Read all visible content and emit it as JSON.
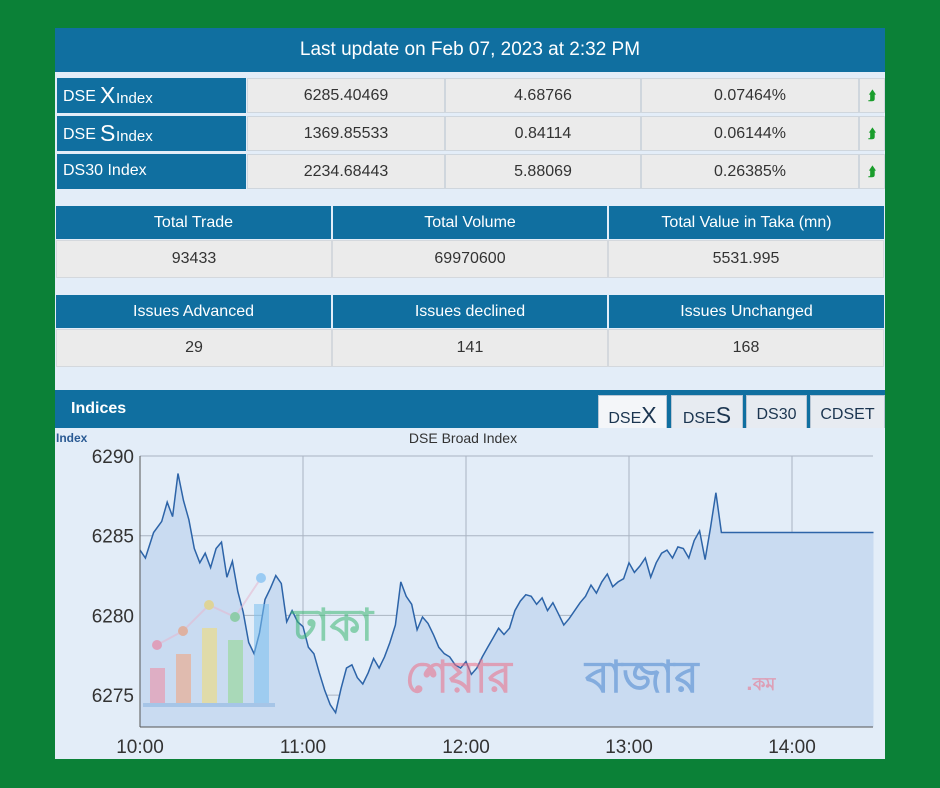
{
  "header": {
    "last_update": "Last update on Feb 07, 2023 at 2:32 PM"
  },
  "indices": [
    {
      "prefix": "DSE",
      "big": "X",
      "suffix": " Index",
      "value": "6285.40469",
      "change": "4.68766",
      "percent": "0.07464%",
      "trend": "up"
    },
    {
      "prefix": "DSE",
      "big": "S",
      "suffix": " Index",
      "value": "1369.85533",
      "change": "0.84114",
      "percent": "0.06144%",
      "trend": "up"
    },
    {
      "prefix": "DS30 Index",
      "big": "",
      "suffix": "",
      "value": "2234.68443",
      "change": "5.88069",
      "percent": "0.26385%",
      "trend": "up"
    }
  ],
  "trade": {
    "headers": [
      "Total Trade",
      "Total Volume",
      "Total Value in Taka (mn)"
    ],
    "values": [
      "93433",
      "69970600",
      "5531.995"
    ]
  },
  "issues": {
    "headers": [
      "Issues Advanced",
      "Issues declined",
      "Issues Unchanged"
    ],
    "values": [
      "29",
      "141",
      "168"
    ]
  },
  "indices_panel": {
    "title": "Indices",
    "tabs": [
      {
        "prefix": "DSE",
        "big": "X",
        "active": true
      },
      {
        "prefix": "DSE",
        "big": "S",
        "active": false
      },
      {
        "prefix": "DS30",
        "big": "",
        "active": false
      },
      {
        "prefix": "CDSET",
        "big": "",
        "active": false
      }
    ]
  },
  "watermark": {
    "word1": "ঢাকা",
    "word2": "শেয়ার",
    "word3": "বাজার",
    "suffix": ".কম"
  },
  "colors": {
    "header_blue": "#106fa0",
    "background_green": "#0b8137",
    "line": "#2d64a8",
    "area": "#c9dbf1",
    "arrow_green": "#1a9d2c"
  },
  "chart_data": {
    "type": "area",
    "title": "DSE Broad Index",
    "ylabel": "Index",
    "xlabel": "",
    "ylim": [
      6273,
      6290
    ],
    "yticks": [
      6275,
      6280,
      6285,
      6290
    ],
    "xticks": [
      "10:00",
      "11:00",
      "12:00",
      "13:00",
      "14:00"
    ],
    "grid": true,
    "x": [
      "10:00",
      "10:02",
      "10:05",
      "10:08",
      "10:10",
      "10:12",
      "10:14",
      "10:16",
      "10:18",
      "10:20",
      "10:22",
      "10:24",
      "10:26",
      "10:28",
      "10:30",
      "10:32",
      "10:34",
      "10:36",
      "10:38",
      "10:40",
      "10:42",
      "10:44",
      "10:46",
      "10:48",
      "10:50",
      "10:52",
      "10:54",
      "10:56",
      "10:58",
      "11:00",
      "11:02",
      "11:04",
      "11:06",
      "11:08",
      "11:10",
      "11:12",
      "11:14",
      "11:16",
      "11:18",
      "11:20",
      "11:22",
      "11:24",
      "11:26",
      "11:28",
      "11:30",
      "11:32",
      "11:34",
      "11:36",
      "11:38",
      "11:40",
      "11:42",
      "11:44",
      "11:46",
      "11:48",
      "11:50",
      "11:52",
      "11:54",
      "11:56",
      "11:58",
      "12:00",
      "12:02",
      "12:04",
      "12:06",
      "12:08",
      "12:10",
      "12:12",
      "12:14",
      "12:16",
      "12:18",
      "12:20",
      "12:22",
      "12:24",
      "12:26",
      "12:28",
      "12:30",
      "12:32",
      "12:34",
      "12:36",
      "12:38",
      "12:40",
      "12:42",
      "12:44",
      "12:46",
      "12:48",
      "12:50",
      "12:52",
      "12:54",
      "12:56",
      "12:58",
      "13:00",
      "13:02",
      "13:04",
      "13:06",
      "13:08",
      "13:10",
      "13:12",
      "13:14",
      "13:16",
      "13:18",
      "13:20",
      "13:22",
      "13:24",
      "13:26",
      "13:28",
      "13:30",
      "13:32",
      "13:34",
      "13:36",
      "13:38",
      "13:40",
      "13:42",
      "13:44",
      "13:46",
      "13:48",
      "13:50",
      "13:52",
      "13:54",
      "13:56",
      "13:58",
      "14:00",
      "14:02",
      "14:04",
      "14:06",
      "14:08",
      "14:10",
      "14:12",
      "14:14",
      "14:16",
      "14:18",
      "14:20",
      "14:22",
      "14:24",
      "14:26",
      "14:28",
      "14:30"
    ],
    "series": [
      {
        "values": [
          6284.1,
          6283.6,
          6285.2,
          6285.9,
          6287.1,
          6286.2,
          6288.9,
          6287.2,
          6286.0,
          6284.2,
          6283.3,
          6283.9,
          6283.0,
          6284.2,
          6284.6,
          6282.4,
          6283.4,
          6281.5,
          6280.2,
          6278.3,
          6277.6,
          6278.9,
          6281.0,
          6281.7,
          6282.5,
          6282.0,
          6279.6,
          6280.3,
          6279.6,
          6279.3,
          6278.0,
          6277.6,
          6276.4,
          6275.3,
          6274.4,
          6273.9,
          6275.4,
          6276.7,
          6276.9,
          6276.1,
          6275.7,
          6276.4,
          6277.3,
          6276.7,
          6277.4,
          6278.3,
          6279.4,
          6282.1,
          6281.2,
          6280.7,
          6279.1,
          6279.9,
          6279.5,
          6278.8,
          6278.0,
          6277.6,
          6277.4,
          6276.9,
          6276.7,
          6277.1,
          6276.3,
          6276.7,
          6277.4,
          6278.0,
          6278.6,
          6279.2,
          6278.8,
          6279.2,
          6280.3,
          6280.9,
          6281.3,
          6281.2,
          6280.7,
          6281.1,
          6280.3,
          6280.8,
          6280.1,
          6279.4,
          6279.8,
          6280.3,
          6280.8,
          6281.2,
          6281.9,
          6281.4,
          6282.1,
          6282.6,
          6281.8,
          6282.1,
          6282.3,
          6283.3,
          6282.7,
          6283.1,
          6283.6,
          6282.4,
          6283.3,
          6283.9,
          6284.1,
          6283.6,
          6284.3,
          6284.2,
          6283.6,
          6284.7,
          6285.3,
          6283.5,
          6285.5,
          6287.7,
          6285.2,
          6285.2,
          6285.2,
          6285.2,
          6285.2,
          6285.2,
          6285.2,
          6285.2,
          6285.2,
          6285.2,
          6285.2,
          6285.2,
          6285.2,
          6285.2,
          6285.2,
          6285.2,
          6285.2,
          6285.2,
          6285.2,
          6285.2,
          6285.2,
          6285.2,
          6285.2,
          6285.2,
          6285.2,
          6285.2,
          6285.2,
          6285.2,
          6285.2
        ]
      }
    ]
  }
}
